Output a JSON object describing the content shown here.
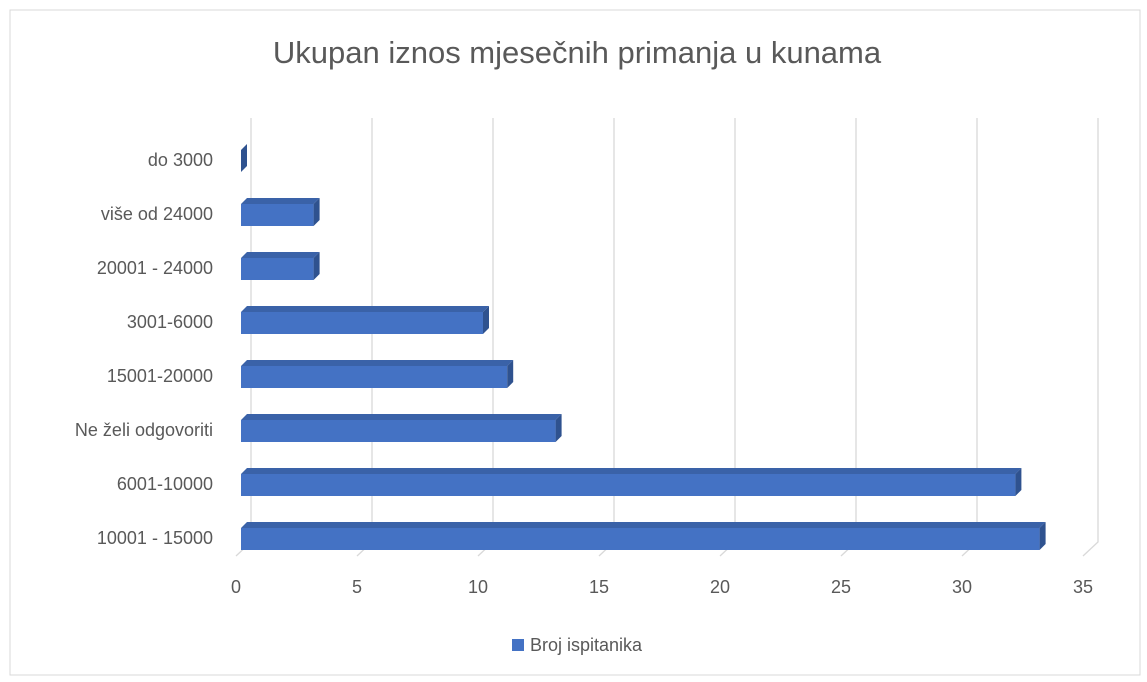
{
  "chart_data": {
    "type": "bar3d_horizontal",
    "title": "Ukupan iznos mjesečnih primanja u kunama",
    "categories": [
      "do 3000",
      "više od 24000",
      "20001 - 24000",
      "3001-6000",
      "15001-20000",
      "Ne želi odgovoriti",
      "6001-10000",
      "10001 - 15000"
    ],
    "series": [
      {
        "name": "Broj ispitanika",
        "color": "#4472c4",
        "values": [
          0,
          3,
          3,
          10,
          11,
          13,
          32,
          33
        ]
      }
    ],
    "xlim": [
      0,
      35
    ],
    "xticks": [
      0,
      5,
      10,
      15,
      20,
      25,
      30,
      35
    ],
    "grid": true,
    "legend": "bottom"
  }
}
